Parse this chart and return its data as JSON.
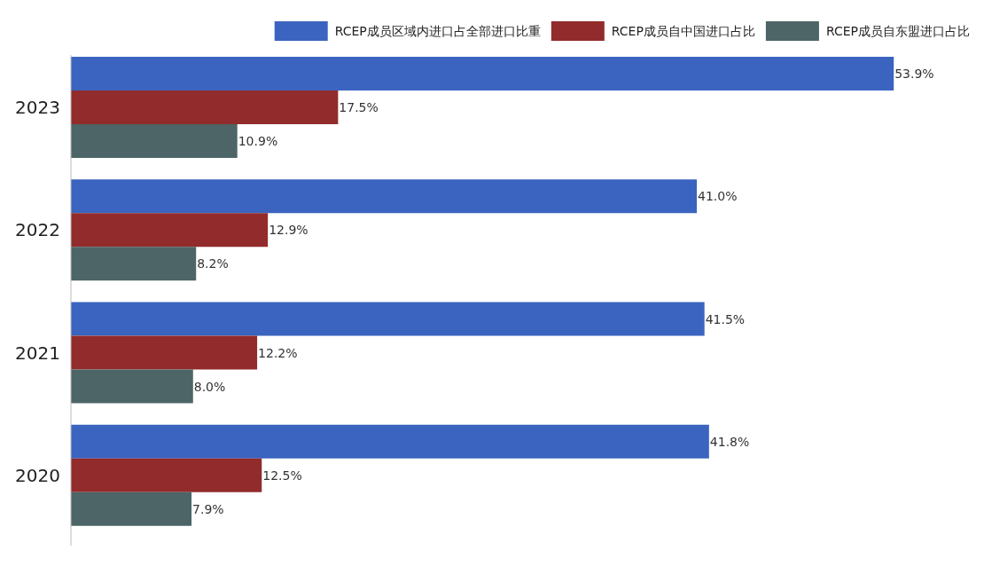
{
  "chart_data": {
    "type": "bar",
    "orientation": "horizontal",
    "categories": [
      "2023",
      "2022",
      "2021",
      "2020"
    ],
    "series": [
      {
        "name": "RCEP成员区域内进口占全部进口比重",
        "color": "#3a64bf",
        "values": [
          53.9,
          41.0,
          41.5,
          41.8
        ],
        "value_labels": [
          "53.9%",
          "41.0%",
          "41.5%",
          "41.8%"
        ]
      },
      {
        "name": "RCEP成员自中国进口占比",
        "color": "#922b2b",
        "values": [
          17.5,
          12.9,
          12.2,
          12.5
        ],
        "value_labels": [
          "17.5%",
          "12.9%",
          "12.2%",
          "12.5%"
        ]
      },
      {
        "name": "RCEP成员自东盟进口占比",
        "color": "#4d6566",
        "values": [
          10.9,
          8.2,
          8.0,
          7.9
        ],
        "value_labels": [
          "10.9%",
          "8.2%",
          "8.0%",
          "7.9%"
        ]
      }
    ],
    "legend": "top right",
    "grid": false
  }
}
